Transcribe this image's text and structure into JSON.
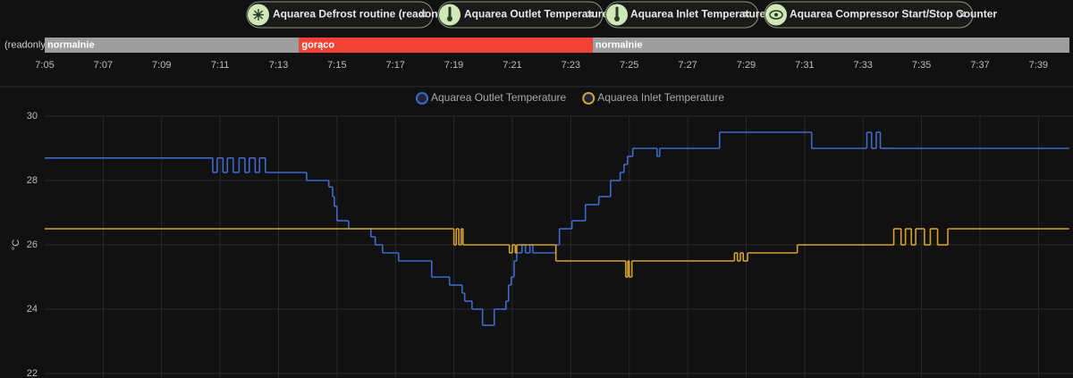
{
  "chips": [
    {
      "label": "Aquarea Defrost routine (readonly)"
    },
    {
      "label": "Aquarea Outlet Temperature"
    },
    {
      "label": "Aquarea Inlet Temperature"
    },
    {
      "label": "Aquarea Compressor Start/Stop Counter"
    }
  ],
  "timeline": {
    "label": "(readonly)",
    "xlim": [
      425,
      460.06
    ],
    "xticks": [
      {
        "value": 425,
        "label": "7:05"
      },
      {
        "value": 427,
        "label": "7:07"
      },
      {
        "value": 429,
        "label": "7:09"
      },
      {
        "value": 431,
        "label": "7:11"
      },
      {
        "value": 433,
        "label": "7:13"
      },
      {
        "value": 435,
        "label": "7:15"
      },
      {
        "value": 437,
        "label": "7:17"
      },
      {
        "value": 439,
        "label": "7:19"
      },
      {
        "value": 441,
        "label": "7:21"
      },
      {
        "value": 443,
        "label": "7:23"
      },
      {
        "value": 445,
        "label": "7:25"
      },
      {
        "value": 447,
        "label": "7:27"
      },
      {
        "value": 449,
        "label": "7:29"
      },
      {
        "value": 451,
        "label": "7:31"
      },
      {
        "value": 453,
        "label": "7:33"
      },
      {
        "value": 455,
        "label": "7:35"
      },
      {
        "value": 457,
        "label": "7:37"
      },
      {
        "value": 459,
        "label": "7:39"
      }
    ],
    "segments": [
      {
        "state": "normalnie",
        "start": 425,
        "end": 433.7,
        "color": "#9e9e9e"
      },
      {
        "state": "gorąco",
        "start": 433.7,
        "end": 443.75,
        "color": "#f44336"
      },
      {
        "state": "normalnie",
        "start": 443.75,
        "end": 460.06,
        "color": "#9e9e9e"
      }
    ]
  },
  "chart_data": {
    "type": "line",
    "step": true,
    "y_label": "°C",
    "xlim": [
      425,
      460.06
    ],
    "ylim": [
      22,
      30
    ],
    "yticks": [
      22,
      24,
      26,
      28,
      30
    ],
    "grid": true,
    "series": [
      {
        "name": "Aquarea Outlet Temperature",
        "color": "#4169c9",
        "x": [
          425.0,
          430.75,
          430.9,
          431.1,
          431.25,
          431.45,
          431.65,
          431.85,
          432.0,
          432.2,
          432.35,
          432.55,
          433.96,
          434.72,
          434.85,
          434.91,
          435.0,
          435.4,
          436.16,
          436.31,
          436.56,
          437.11,
          438.24,
          438.85,
          439.28,
          439.37,
          439.62,
          439.98,
          440.38,
          440.78,
          440.87,
          440.96,
          441.06,
          441.15,
          441.33,
          441.45,
          441.6,
          441.7,
          442.49,
          442.61,
          443.04,
          443.5,
          443.96,
          444.36,
          444.69,
          444.82,
          444.94,
          445.12,
          445.95,
          446.04,
          448.09,
          451.24,
          453.13,
          453.29,
          453.45,
          453.59,
          454.0,
          460.05
        ],
        "values": [
          28.7,
          28.25,
          28.7,
          28.25,
          28.7,
          28.25,
          28.7,
          28.25,
          28.7,
          28.25,
          28.7,
          28.25,
          28.0,
          27.8,
          27.5,
          27.2,
          26.75,
          26.5,
          26.25,
          26.0,
          25.75,
          25.5,
          25.0,
          24.75,
          24.5,
          24.25,
          24.0,
          23.5,
          24.0,
          24.25,
          24.75,
          25.0,
          25.5,
          25.75,
          26.0,
          25.75,
          26.0,
          25.75,
          26.0,
          26.5,
          26.75,
          27.25,
          27.5,
          28.0,
          28.25,
          28.5,
          28.75,
          29.0,
          28.75,
          29.0,
          29.5,
          29.0,
          29.5,
          29.0,
          29.5,
          29.0,
          29.0,
          29.0
        ]
      },
      {
        "name": "Aquarea Inlet Temperature",
        "color": "#d4a12f",
        "x": [
          425.0,
          439.0,
          439.08,
          439.17,
          439.25,
          439.31,
          440.9,
          441.0,
          441.1,
          441.15,
          442.49,
          444.88,
          444.95,
          445.0,
          445.09,
          448.6,
          448.7,
          448.8,
          448.9,
          449.05,
          450.75,
          454.05,
          454.3,
          454.45,
          454.65,
          454.8,
          455.1,
          455.3,
          455.55,
          455.9,
          460.05
        ],
        "values": [
          26.5,
          26.0,
          26.5,
          26.0,
          26.5,
          26.0,
          25.75,
          26.0,
          25.75,
          26.0,
          25.5,
          25.0,
          25.5,
          25.0,
          25.5,
          25.75,
          25.5,
          25.75,
          25.5,
          25.75,
          26.0,
          26.5,
          26.0,
          26.5,
          26.0,
          26.5,
          26.0,
          26.5,
          26.0,
          26.5,
          26.5
        ]
      }
    ]
  }
}
